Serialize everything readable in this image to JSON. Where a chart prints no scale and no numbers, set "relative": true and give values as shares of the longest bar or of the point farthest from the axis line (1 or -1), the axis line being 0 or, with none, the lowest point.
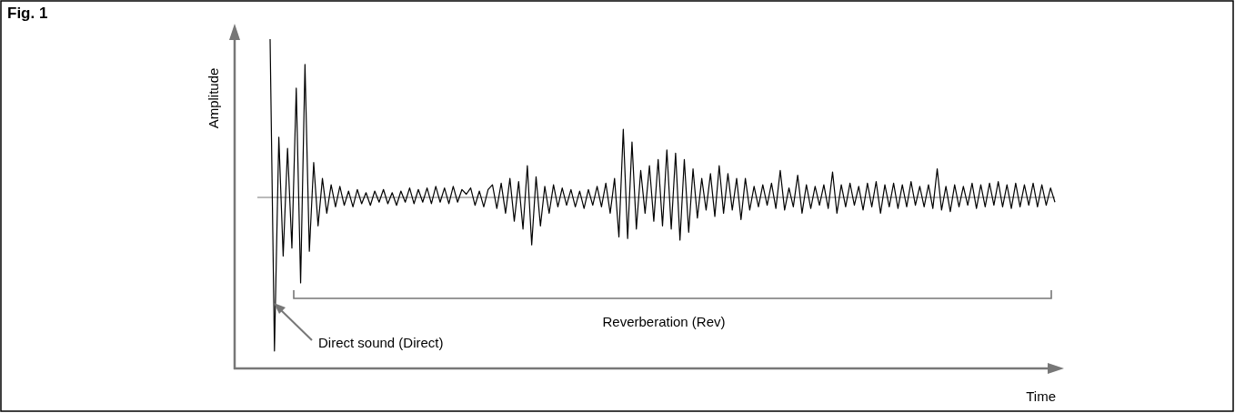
{
  "chart_data": {
    "type": "line",
    "title": "Fig. 1",
    "xlabel": "Time",
    "ylabel": "Amplitude",
    "relative": true,
    "annotations": [
      "Reverberation (Rev)",
      "Direct sound (Direct)"
    ],
    "categories": [
      null,
      null,
      null,
      null,
      null,
      null,
      null,
      null,
      null,
      null,
      null,
      null,
      null,
      null,
      null,
      null,
      null,
      null,
      null,
      null,
      null,
      null,
      null,
      null,
      null,
      null,
      null,
      null,
      null,
      null,
      null,
      null,
      null,
      null,
      null,
      null,
      null,
      null,
      null,
      null,
      null,
      null,
      null,
      null,
      null,
      null,
      null,
      null,
      null,
      null,
      null,
      null,
      null,
      null,
      null,
      null,
      null,
      null,
      null,
      null,
      null,
      null,
      null,
      null,
      null,
      null,
      null,
      null,
      null,
      null,
      null,
      null,
      null,
      null,
      null,
      null,
      null,
      null,
      null,
      null,
      null,
      null,
      null,
      null,
      null,
      null,
      null,
      null,
      null,
      null,
      null,
      null,
      null,
      null,
      null,
      null,
      null,
      null,
      null,
      null,
      null,
      null,
      null,
      null,
      null,
      null,
      null,
      null,
      null,
      null,
      null,
      null,
      null,
      null,
      null,
      null,
      null,
      null,
      null,
      null,
      null,
      null,
      null,
      null,
      null,
      null,
      null,
      null,
      null,
      null,
      null,
      null,
      null,
      null,
      null,
      null,
      null,
      null,
      null,
      null,
      null,
      null,
      null,
      null,
      null,
      null,
      null,
      null,
      null,
      null,
      null,
      null,
      null,
      null,
      null,
      null,
      null,
      null,
      null,
      null,
      null,
      null,
      null,
      null,
      null,
      null,
      null,
      null,
      null,
      null,
      null,
      null,
      null,
      null,
      null,
      null,
      null,
      null,
      null,
      null,
      null
    ],
    "series": [
      {
        "color": "#000000",
        "values": [
          1.0,
          -0.97,
          0.38,
          -0.37,
          0.31,
          -0.32,
          0.69,
          -0.54,
          0.84,
          -0.34,
          0.22,
          -0.18,
          0.12,
          -0.1,
          0.08,
          -0.06,
          0.07,
          -0.05,
          0.04,
          -0.06,
          0.05,
          -0.04,
          0.03,
          -0.05,
          0.04,
          -0.03,
          0.05,
          -0.04,
          0.03,
          -0.05,
          0.04,
          -0.03,
          0.06,
          -0.04,
          0.05,
          -0.03,
          0.06,
          -0.04,
          0.07,
          -0.03,
          0.06,
          -0.04,
          0.07,
          -0.03,
          0.05,
          0.02,
          0.06,
          -0.05,
          0.04,
          -0.06,
          0.05,
          0.08,
          -0.07,
          0.09,
          -0.1,
          0.12,
          -0.15,
          0.1,
          -0.2,
          0.2,
          -0.3,
          0.13,
          -0.18,
          0.07,
          -0.1,
          0.08,
          -0.06,
          0.06,
          -0.05,
          0.05,
          -0.06,
          0.04,
          -0.07,
          0.05,
          -0.05,
          0.07,
          -0.06,
          0.09,
          -0.1,
          0.12,
          -0.25,
          0.43,
          -0.26,
          0.35,
          -0.2,
          0.17,
          -0.1,
          0.2,
          -0.15,
          0.24,
          -0.18,
          0.3,
          -0.2,
          0.28,
          -0.27,
          0.24,
          -0.22,
          0.18,
          -0.13,
          0.12,
          -0.08,
          0.15,
          -0.12,
          0.2,
          -0.1,
          0.15,
          -0.08,
          0.12,
          -0.14,
          0.12,
          -0.08,
          0.07,
          -0.06,
          0.08,
          -0.05,
          0.09,
          -0.07,
          0.17,
          -0.08,
          0.06,
          -0.06,
          0.14,
          -0.1,
          0.08,
          -0.07,
          0.07,
          -0.05,
          0.08,
          -0.07,
          0.16,
          -0.1,
          0.08,
          -0.06,
          0.09,
          -0.05,
          0.07,
          -0.08,
          0.09,
          -0.06,
          0.1,
          -0.1,
          0.08,
          -0.06,
          0.09,
          -0.07,
          0.08,
          -0.06,
          0.1,
          -0.05,
          0.07,
          -0.06,
          0.08,
          -0.07,
          0.18,
          -0.08,
          0.07,
          -0.09,
          0.08,
          -0.06,
          0.07,
          -0.05,
          0.09,
          -0.07,
          0.08,
          -0.06,
          0.09,
          -0.05,
          0.1,
          -0.06,
          0.08,
          -0.07,
          0.09,
          -0.06,
          0.08,
          -0.05,
          0.09,
          -0.06,
          0.08,
          -0.05,
          0.06,
          -0.03
        ]
      }
    ]
  }
}
